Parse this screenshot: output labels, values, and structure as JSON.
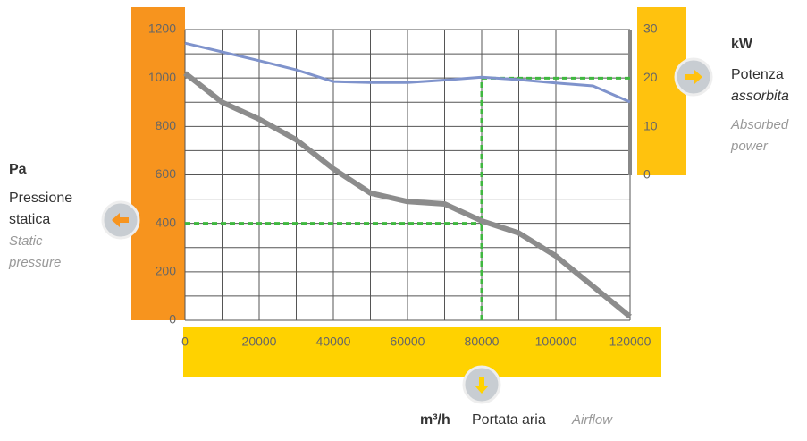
{
  "chart_data": {
    "type": "line",
    "y_label": {
      "unit": "Pa",
      "it": [
        "Pressione",
        "statica"
      ],
      "en": [
        "Static",
        "pressure"
      ]
    },
    "y2_label": {
      "unit": "kW",
      "it": [
        "Potenza",
        "assorbita"
      ],
      "en": [
        "Absorbed",
        "power"
      ]
    },
    "x_label": {
      "unit": "m³/h",
      "it": "Portata aria",
      "en": "Airflow"
    },
    "x": [
      0,
      10000,
      20000,
      30000,
      40000,
      50000,
      60000,
      70000,
      80000,
      90000,
      100000,
      110000,
      120000
    ],
    "series": [
      {
        "name": "Pressione statica",
        "color": "#8c8c8c",
        "values": [
          1020,
          900,
          830,
          745,
          625,
          525,
          490,
          480,
          410,
          360,
          265,
          140,
          15
        ]
      },
      {
        "name": "Potenza assorbita",
        "color": "#7f93cc",
        "axis": "y2",
        "values": [
          27.2,
          25.4,
          23.6,
          21.7,
          19.3,
          19.1,
          19.1,
          19.6,
          20.2,
          19.7,
          19.0,
          18.4,
          15.1
        ]
      }
    ],
    "operating_point": {
      "x": 80000,
      "y": 400,
      "y2": 20,
      "color": "#3fb83f"
    },
    "xlim": [
      0,
      120000
    ],
    "xticks": [
      0,
      20000,
      40000,
      60000,
      80000,
      100000,
      120000
    ],
    "ylim": [
      0,
      1200
    ],
    "yticks": [
      0,
      200,
      400,
      600,
      800,
      1000,
      1200
    ],
    "y2lim": [
      0,
      30
    ],
    "y2ticks": [
      0,
      10,
      20,
      30
    ],
    "grid": true
  }
}
